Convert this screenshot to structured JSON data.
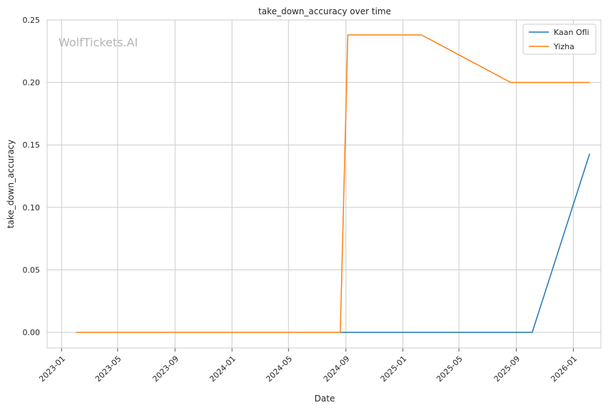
{
  "watermark": "WolfTickets.AI",
  "chart_data": {
    "type": "line",
    "title": "take_down_accuracy over time",
    "xlabel": "Date",
    "ylabel": "take_down_accuracy",
    "x_ticks": [
      "2023-01",
      "2023-05",
      "2023-09",
      "2024-01",
      "2024-05",
      "2024-09",
      "2025-01",
      "2025-05",
      "2025-09",
      "2026-01"
    ],
    "y_ticks": [
      "0.00",
      "0.05",
      "0.10",
      "0.15",
      "0.20",
      "0.25"
    ],
    "xlim": [
      "2022-12-01",
      "2026-03-01"
    ],
    "ylim": [
      -0.0125,
      0.25
    ],
    "grid": true,
    "legend_position": "top-right",
    "series": [
      {
        "name": "Kaan Ofli",
        "color": "#1f77b4",
        "points": [
          {
            "x": "2024-08-20",
            "y": 0.0
          },
          {
            "x": "2025-10-05",
            "y": 0.0
          },
          {
            "x": "2026-02-05",
            "y": 0.143
          }
        ]
      },
      {
        "name": "Yizha",
        "color": "#ff7f0e",
        "points": [
          {
            "x": "2023-02-01",
            "y": 0.0
          },
          {
            "x": "2024-08-20",
            "y": 0.0
          },
          {
            "x": "2024-09-05",
            "y": 0.238
          },
          {
            "x": "2025-02-10",
            "y": 0.238
          },
          {
            "x": "2025-08-20",
            "y": 0.2
          },
          {
            "x": "2026-02-05",
            "y": 0.2
          }
        ]
      }
    ]
  }
}
